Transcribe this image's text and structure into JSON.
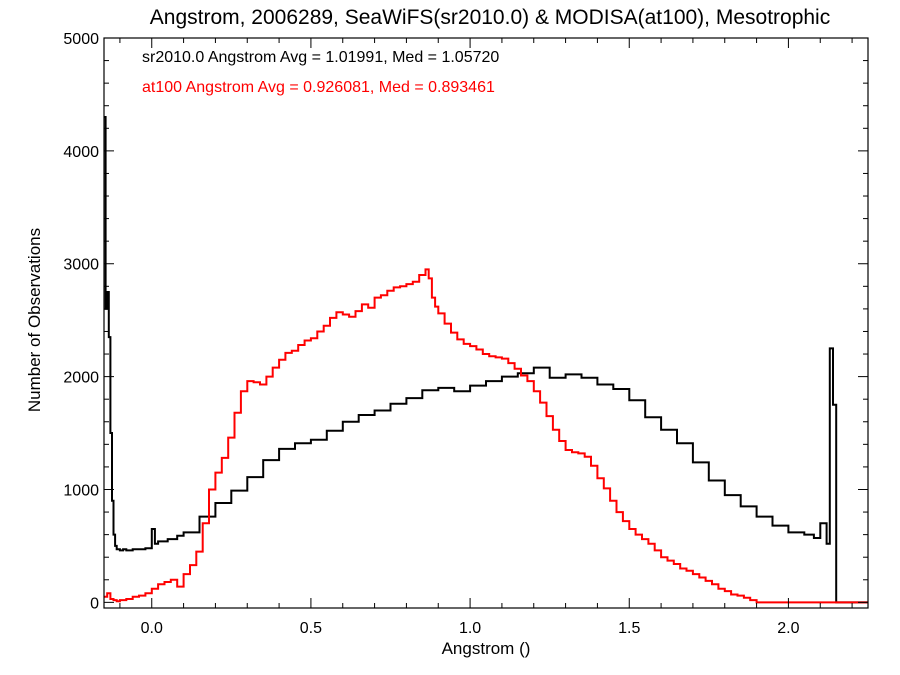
{
  "chart_data": {
    "type": "line",
    "step": true,
    "title": "Angstrom, 2006289, SeaWiFS(sr2010.0) & MODISA(at100), Mesotrophic",
    "xlabel": "Angstrom ()",
    "ylabel": "Number of Observations",
    "xlim": [
      -0.15,
      2.25
    ],
    "ylim": [
      -50,
      5000
    ],
    "x_ticks": [
      0.0,
      0.5,
      1.0,
      1.5,
      2.0
    ],
    "x_tick_labels": [
      "0.0",
      "0.5",
      "1.0",
      "1.5",
      "2.0"
    ],
    "y_ticks": [
      0,
      1000,
      2000,
      3000,
      4000,
      5000
    ],
    "y_tick_labels": [
      "0",
      "1000",
      "2000",
      "3000",
      "4000",
      "5000"
    ],
    "grid": false,
    "annotations": [
      {
        "text": "sr2010.0 Angstrom Avg = 1.01991, Med = 1.05720",
        "color": "#000000"
      },
      {
        "text": "at100 Angstrom Avg = 0.926081, Med = 0.893461",
        "color": "#ff0000"
      }
    ],
    "series": [
      {
        "color": "#000000",
        "x": [
          -0.15,
          -0.145,
          -0.14,
          -0.135,
          -0.13,
          -0.125,
          -0.12,
          -0.115,
          -0.11,
          -0.1,
          -0.09,
          -0.08,
          -0.06,
          -0.04,
          -0.02,
          0.0,
          0.01,
          0.02,
          0.05,
          0.08,
          0.1,
          0.15,
          0.2,
          0.25,
          0.3,
          0.35,
          0.4,
          0.45,
          0.5,
          0.55,
          0.6,
          0.65,
          0.7,
          0.75,
          0.8,
          0.85,
          0.9,
          0.95,
          1.0,
          1.05,
          1.1,
          1.15,
          1.2,
          1.25,
          1.3,
          1.35,
          1.4,
          1.45,
          1.5,
          1.55,
          1.6,
          1.65,
          1.7,
          1.75,
          1.8,
          1.85,
          1.9,
          1.95,
          2.0,
          2.05,
          2.08,
          2.1,
          2.12,
          2.13,
          2.14,
          2.15,
          2.16
        ],
        "y": [
          4300,
          2600,
          2750,
          2350,
          1500,
          900,
          600,
          500,
          470,
          460,
          470,
          460,
          470,
          470,
          480,
          650,
          520,
          540,
          560,
          590,
          620,
          760,
          880,
          990,
          1110,
          1260,
          1360,
          1410,
          1440,
          1520,
          1600,
          1660,
          1700,
          1760,
          1810,
          1880,
          1900,
          1870,
          1920,
          1960,
          2000,
          2030,
          2080,
          1990,
          2020,
          1990,
          1930,
          1890,
          1790,
          1640,
          1530,
          1410,
          1240,
          1080,
          950,
          850,
          760,
          680,
          620,
          600,
          570,
          700,
          520,
          2250,
          1750,
          0,
          0
        ]
      },
      {
        "color": "#ff0000",
        "x": [
          -0.15,
          -0.14,
          -0.13,
          -0.12,
          -0.11,
          -0.1,
          -0.08,
          -0.06,
          -0.04,
          -0.02,
          0.0,
          0.02,
          0.04,
          0.06,
          0.08,
          0.1,
          0.12,
          0.14,
          0.16,
          0.18,
          0.2,
          0.22,
          0.24,
          0.26,
          0.28,
          0.3,
          0.32,
          0.34,
          0.36,
          0.38,
          0.4,
          0.42,
          0.44,
          0.46,
          0.48,
          0.5,
          0.52,
          0.54,
          0.56,
          0.58,
          0.6,
          0.62,
          0.64,
          0.66,
          0.68,
          0.7,
          0.72,
          0.74,
          0.76,
          0.78,
          0.8,
          0.82,
          0.84,
          0.86,
          0.87,
          0.88,
          0.89,
          0.9,
          0.92,
          0.94,
          0.96,
          0.98,
          1.0,
          1.02,
          1.04,
          1.06,
          1.08,
          1.1,
          1.12,
          1.14,
          1.16,
          1.18,
          1.2,
          1.22,
          1.24,
          1.26,
          1.28,
          1.3,
          1.32,
          1.34,
          1.36,
          1.38,
          1.4,
          1.42,
          1.44,
          1.46,
          1.48,
          1.5,
          1.52,
          1.54,
          1.56,
          1.58,
          1.6,
          1.62,
          1.64,
          1.66,
          1.68,
          1.7,
          1.72,
          1.74,
          1.76,
          1.78,
          1.8,
          1.82,
          1.84,
          1.86,
          1.88,
          1.9,
          1.92,
          1.94,
          1.96,
          1.98,
          2.0,
          2.02,
          2.04,
          2.06,
          2.08,
          2.1,
          2.12,
          2.14,
          2.16
        ],
        "y": [
          50,
          80,
          30,
          20,
          10,
          20,
          30,
          50,
          60,
          80,
          120,
          160,
          180,
          200,
          140,
          250,
          330,
          450,
          700,
          1000,
          1150,
          1280,
          1460,
          1680,
          1870,
          1960,
          1950,
          1930,
          2000,
          2080,
          2150,
          2210,
          2230,
          2280,
          2320,
          2340,
          2400,
          2450,
          2520,
          2570,
          2550,
          2530,
          2580,
          2640,
          2610,
          2700,
          2720,
          2760,
          2790,
          2800,
          2820,
          2840,
          2900,
          2950,
          2870,
          2700,
          2620,
          2560,
          2470,
          2390,
          2330,
          2290,
          2270,
          2240,
          2200,
          2180,
          2170,
          2160,
          2120,
          2070,
          2010,
          1960,
          1870,
          1770,
          1650,
          1530,
          1430,
          1350,
          1330,
          1320,
          1290,
          1210,
          1100,
          1010,
          900,
          800,
          720,
          650,
          600,
          560,
          520,
          460,
          400,
          370,
          340,
          300,
          280,
          250,
          220,
          190,
          160,
          120,
          100,
          70,
          60,
          40,
          20,
          0,
          0,
          0,
          0,
          0,
          0,
          0,
          0,
          0,
          0,
          0,
          0,
          0,
          0
        ]
      }
    ]
  }
}
